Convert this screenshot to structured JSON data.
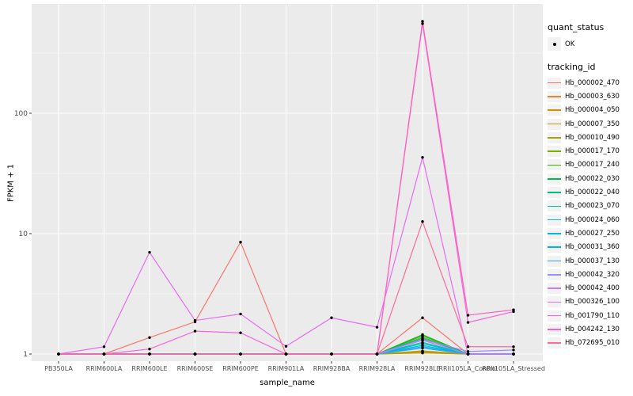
{
  "figure": {
    "background": "#FFFFFF",
    "panel_fill": "#EBEBEB",
    "grid_color": "#FFFFFF",
    "tick_mark_color": "#333333",
    "tick_text_color": "#4D4D4D",
    "title_text_color": "#000000",
    "legend_key_fill": "#F2F2F2",
    "point_color": "#000000"
  },
  "axes": {
    "x_label": "sample_name",
    "y_label": "FPKM + 1",
    "y_tick_labels": [
      "1",
      "10",
      "100"
    ]
  },
  "legend": {
    "quant_status": {
      "title": "quant_status",
      "items": [
        {
          "label": "OK",
          "symbol": "filled-point"
        }
      ]
    },
    "tracking_id": {
      "title": "tracking_id",
      "items": [
        {
          "label": "Hb_000002_470",
          "color": "#F8766D"
        },
        {
          "label": "Hb_000003_630",
          "color": "#EA8331"
        },
        {
          "label": "Hb_000004_050",
          "color": "#D89000"
        },
        {
          "label": "Hb_000007_350",
          "color": "#C09B00"
        },
        {
          "label": "Hb_000010_490",
          "color": "#A3A500"
        },
        {
          "label": "Hb_000017_170",
          "color": "#7CAE00"
        },
        {
          "label": "Hb_000017_240",
          "color": "#39B600"
        },
        {
          "label": "Hb_000022_030",
          "color": "#00BB4E"
        },
        {
          "label": "Hb_000022_040",
          "color": "#00BF7D"
        },
        {
          "label": "Hb_000023_070",
          "color": "#00C1A3"
        },
        {
          "label": "Hb_000024_060",
          "color": "#00BFC4"
        },
        {
          "label": "Hb_000027_250",
          "color": "#00BAE0"
        },
        {
          "label": "Hb_000031_360",
          "color": "#00B0F6"
        },
        {
          "label": "Hb_000037_130",
          "color": "#35A2FF"
        },
        {
          "label": "Hb_000042_320",
          "color": "#9590FF"
        },
        {
          "label": "Hb_000042_400",
          "color": "#C77CFF"
        },
        {
          "label": "Hb_000326_100",
          "color": "#E76BF3"
        },
        {
          "label": "Hb_001790_110",
          "color": "#FA62DB"
        },
        {
          "label": "Hb_004242_130",
          "color": "#FF62BC"
        },
        {
          "label": "Hb_072695_010",
          "color": "#FF6A98"
        }
      ]
    }
  },
  "chart_data": {
    "type": "line",
    "title": "",
    "xlabel": "sample_name",
    "ylabel": "FPKM + 1",
    "y_scale": "log10",
    "ylim": [
      0.87,
      810
    ],
    "y_tick_values": [
      1,
      10,
      100
    ],
    "y_minor_gridlines": [
      3.162,
      31.62,
      316.2
    ],
    "grid": true,
    "legend_position": "right",
    "point_shape": "filled-circle-black",
    "quant_status_all_points": "OK",
    "categories": [
      "PB350LA",
      "RRIM600LA",
      "RRIM600LE",
      "RRIM600SE",
      "RRIM600PE",
      "RRIM901LA",
      "RRIM928BA",
      "RRIM928LA",
      "RRIM928LE",
      "RRII105LA_Control",
      "RRII105LA_Stressed"
    ],
    "series": [
      {
        "name": "Hb_000002_470",
        "color": "#F8766D",
        "values": [
          1.0,
          1.0,
          1.37,
          1.85,
          8.5,
          1.0,
          1.0,
          1.0,
          2.0,
          1.0,
          1.0
        ]
      },
      {
        "name": "Hb_000003_630",
        "color": "#EA8331",
        "values": [
          1.0,
          1.0,
          1.0,
          1.0,
          1.0,
          1.0,
          1.0,
          1.0,
          1.05,
          1.0,
          1.0
        ]
      },
      {
        "name": "Hb_000004_050",
        "color": "#D89000",
        "values": [
          1.0,
          1.0,
          1.0,
          1.0,
          1.0,
          1.0,
          1.0,
          1.0,
          1.03,
          1.0,
          1.0
        ]
      },
      {
        "name": "Hb_000007_350",
        "color": "#C09B00",
        "values": [
          1.0,
          1.0,
          1.0,
          1.0,
          1.0,
          1.0,
          1.0,
          1.0,
          1.02,
          1.0,
          1.0
        ]
      },
      {
        "name": "Hb_000010_490",
        "color": "#A3A500",
        "values": [
          1.0,
          1.0,
          1.0,
          1.0,
          1.0,
          1.0,
          1.0,
          1.0,
          1.06,
          1.0,
          1.0
        ]
      },
      {
        "name": "Hb_000017_170",
        "color": "#7CAE00",
        "values": [
          1.0,
          1.0,
          1.0,
          1.0,
          1.0,
          1.0,
          1.0,
          1.0,
          1.38,
          1.0,
          1.0
        ]
      },
      {
        "name": "Hb_000017_240",
        "color": "#39B600",
        "values": [
          1.0,
          1.0,
          1.0,
          1.0,
          1.0,
          1.0,
          1.0,
          1.0,
          1.45,
          1.0,
          1.0
        ]
      },
      {
        "name": "Hb_000022_030",
        "color": "#00BB4E",
        "values": [
          1.0,
          1.0,
          1.0,
          1.0,
          1.0,
          1.0,
          1.0,
          1.0,
          1.42,
          1.0,
          1.0
        ]
      },
      {
        "name": "Hb_000022_040",
        "color": "#00BF7D",
        "values": [
          1.0,
          1.0,
          1.0,
          1.0,
          1.0,
          1.0,
          1.0,
          1.0,
          1.35,
          1.0,
          1.0
        ]
      },
      {
        "name": "Hb_000023_070",
        "color": "#00C1A3",
        "values": [
          1.0,
          1.0,
          1.0,
          1.0,
          1.0,
          1.0,
          1.0,
          1.0,
          1.25,
          1.0,
          1.0
        ]
      },
      {
        "name": "Hb_000024_060",
        "color": "#00BFC4",
        "values": [
          1.0,
          1.0,
          1.0,
          1.0,
          1.0,
          1.0,
          1.0,
          1.0,
          1.22,
          1.0,
          1.0
        ]
      },
      {
        "name": "Hb_000027_250",
        "color": "#00BAE0",
        "values": [
          1.0,
          1.0,
          1.0,
          1.0,
          1.0,
          1.0,
          1.0,
          1.0,
          1.18,
          1.0,
          1.0
        ]
      },
      {
        "name": "Hb_000031_360",
        "color": "#00B0F6",
        "values": [
          1.0,
          1.0,
          1.0,
          1.0,
          1.0,
          1.0,
          1.0,
          1.0,
          1.15,
          1.0,
          1.0
        ]
      },
      {
        "name": "Hb_000037_130",
        "color": "#35A2FF",
        "values": [
          1.0,
          1.0,
          1.0,
          1.0,
          1.0,
          1.0,
          1.0,
          1.0,
          1.12,
          1.0,
          1.0
        ]
      },
      {
        "name": "Hb_000042_320",
        "color": "#9590FF",
        "values": [
          1.0,
          1.0,
          1.0,
          1.0,
          1.0,
          1.0,
          1.0,
          1.0,
          1.32,
          1.05,
          1.08
        ]
      },
      {
        "name": "Hb_000042_400",
        "color": "#C77CFF",
        "values": [
          1.0,
          1.0,
          1.0,
          1.0,
          1.0,
          1.0,
          1.0,
          1.0,
          1.3,
          1.0,
          1.0
        ]
      },
      {
        "name": "Hb_000326_100",
        "color": "#E76BF3",
        "values": [
          1.0,
          1.15,
          7.0,
          1.9,
          2.15,
          1.16,
          2.0,
          1.67,
          43.0,
          1.0,
          1.0
        ]
      },
      {
        "name": "Hb_001790_110",
        "color": "#FA62DB",
        "values": [
          1.0,
          1.0,
          1.1,
          1.55,
          1.5,
          1.0,
          1.0,
          1.0,
          555.0,
          1.83,
          2.25
        ]
      },
      {
        "name": "Hb_004242_130",
        "color": "#FF62BC",
        "values": [
          1.0,
          1.0,
          1.0,
          1.0,
          1.0,
          1.0,
          1.0,
          1.0,
          580.0,
          2.1,
          2.33
        ]
      },
      {
        "name": "Hb_072695_010",
        "color": "#FF6A98",
        "values": [
          1.0,
          1.0,
          1.0,
          1.0,
          1.0,
          1.0,
          1.0,
          1.0,
          12.6,
          1.15,
          1.15
        ]
      }
    ]
  }
}
